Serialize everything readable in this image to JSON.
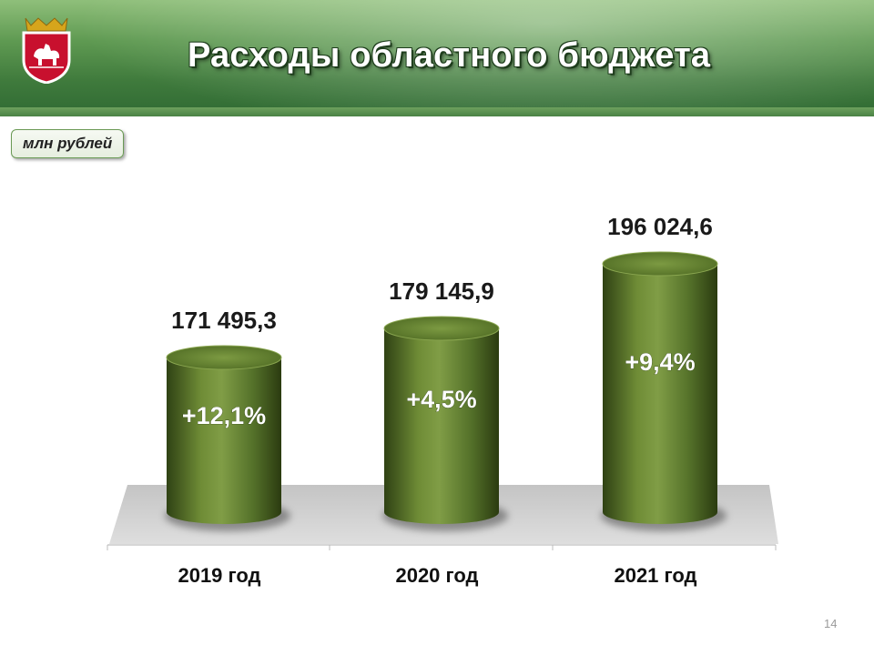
{
  "slide": {
    "title": "Расходы областного бюджета",
    "unit_badge": "млн  рублей",
    "page_number": "14"
  },
  "colors": {
    "cylinder": "#4f6a23",
    "cylinder_light": "#7f9c44",
    "cylinder_dark": "#2b3b10",
    "floor": "#cfcfcf",
    "header_green": "#3f7a3c"
  },
  "chart_data": {
    "type": "bar",
    "title": "Расходы областного бюджета",
    "ylabel": "млн  рублей",
    "categories": [
      "2019 год",
      "2020 год",
      "2021 год"
    ],
    "values": [
      171495.3,
      179145.9,
      196024.6
    ],
    "value_labels": [
      "171 495,3",
      "179 145,9",
      "196 024,6"
    ],
    "growth_labels": [
      "+12,1%",
      "+4,5%",
      "+9,4%"
    ],
    "grid": false,
    "legend": "none"
  }
}
